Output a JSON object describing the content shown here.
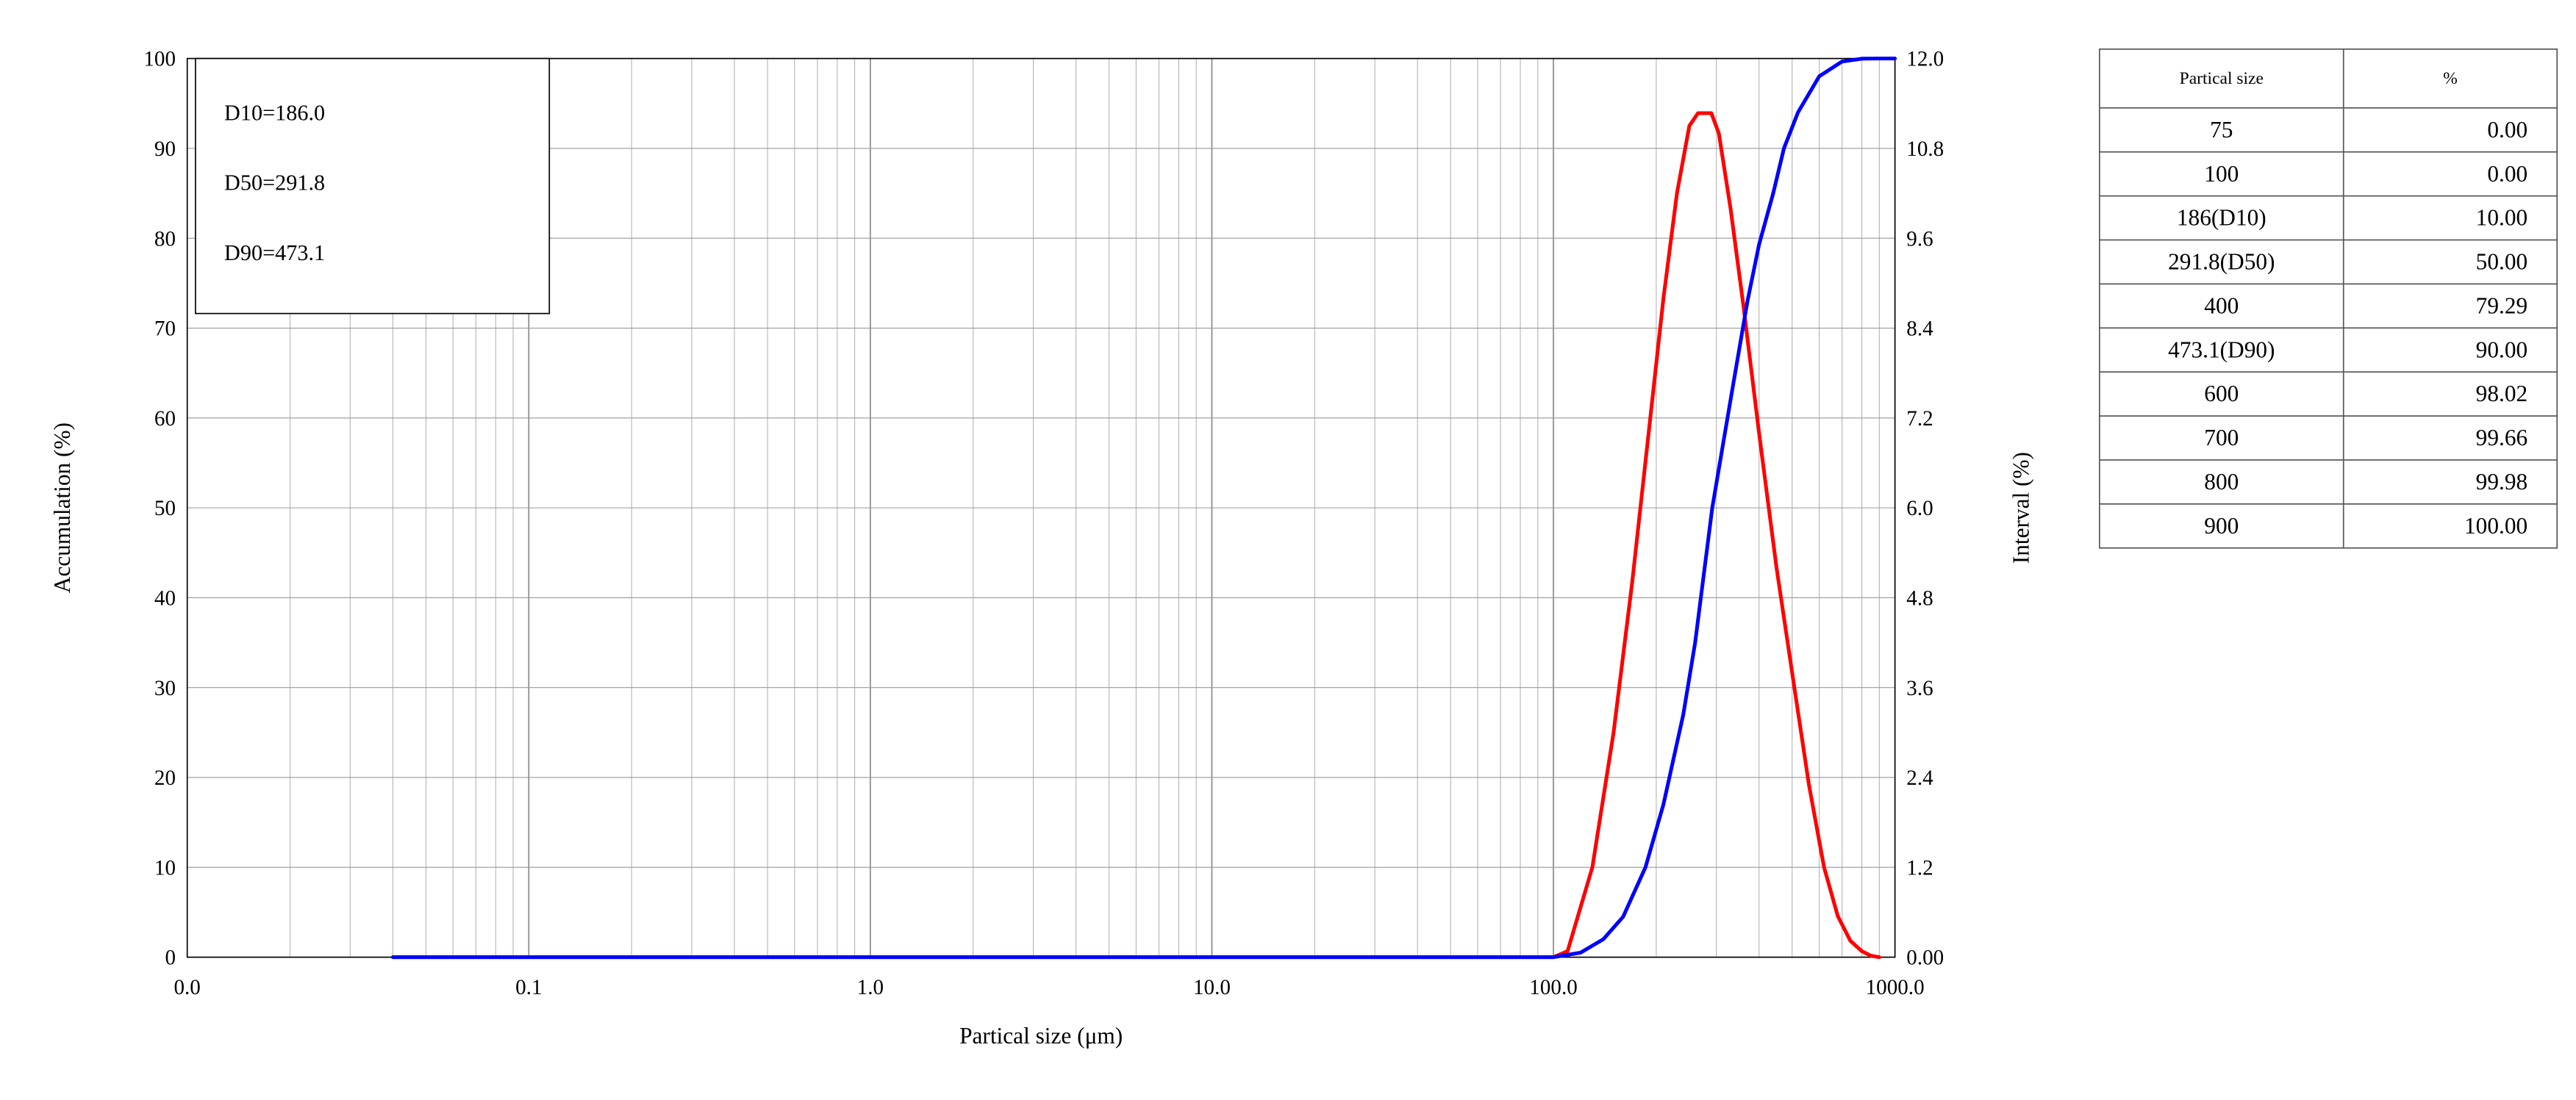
{
  "chart_data": {
    "type": "line",
    "x_scale": "log",
    "xlabel": "Partical size (μm)",
    "ylabel_left": "Accumulation (%)",
    "ylabel_right": "Interval (%)",
    "x_tick_labels": [
      "0.0",
      "0.1",
      "1.0",
      "10.0",
      "100.0",
      "1000.0"
    ],
    "y_left_ticks": [
      0,
      10,
      20,
      30,
      40,
      50,
      60,
      70,
      80,
      90,
      100
    ],
    "y_right_ticks": [
      "0.00",
      "1.2",
      "2.4",
      "3.6",
      "4.8",
      "6.0",
      "7.2",
      "8.4",
      "9.6",
      "10.8",
      "12.0"
    ],
    "y_left_range": [
      0,
      100
    ],
    "y_right_range": [
      0,
      12
    ],
    "x_range": [
      0.01,
      1000
    ],
    "grid": true,
    "annotations": [
      "D10=186.0",
      "D50=291.8",
      "D90=473.1"
    ],
    "series": [
      {
        "axis": "right",
        "color": "#ff0000",
        "x": [
          0.04,
          100,
          110,
          130,
          150,
          170,
          190,
          210,
          230,
          250,
          265,
          275,
          290,
          305,
          330,
          360,
          400,
          450,
          500,
          560,
          620,
          680,
          740,
          800,
          850,
          900
        ],
        "y": [
          0,
          0,
          0.08,
          1.2,
          3.0,
          5.0,
          7.0,
          8.8,
          10.2,
          11.1,
          11.27,
          11.27,
          11.27,
          11.0,
          10.0,
          8.7,
          7.0,
          5.2,
          3.8,
          2.3,
          1.2,
          0.55,
          0.22,
          0.08,
          0.02,
          0
        ]
      },
      {
        "axis": "left",
        "color": "#0000ff",
        "x": [
          0.04,
          100,
          120,
          140,
          160,
          186,
          210,
          240,
          260,
          291.8,
          330,
          370,
          400,
          440,
          473.1,
          520,
          600,
          700,
          800,
          900,
          1000
        ],
        "y": [
          0,
          0,
          0.5,
          2.0,
          4.5,
          10,
          17,
          27,
          35,
          50,
          62,
          73,
          79.29,
          85,
          90,
          94,
          98.02,
          99.66,
          99.98,
          100,
          100
        ]
      }
    ]
  },
  "table": {
    "headers": [
      "Partical size",
      "%"
    ],
    "rows": [
      [
        "75",
        "0.00"
      ],
      [
        "100",
        "0.00"
      ],
      [
        "186(D10)",
        "10.00"
      ],
      [
        "291.8(D50)",
        "50.00"
      ],
      [
        "400",
        "79.29"
      ],
      [
        "473.1(D90)",
        "90.00"
      ],
      [
        "600",
        "98.02"
      ],
      [
        "700",
        "99.66"
      ],
      [
        "800",
        "99.98"
      ],
      [
        "900",
        "100.00"
      ]
    ]
  }
}
